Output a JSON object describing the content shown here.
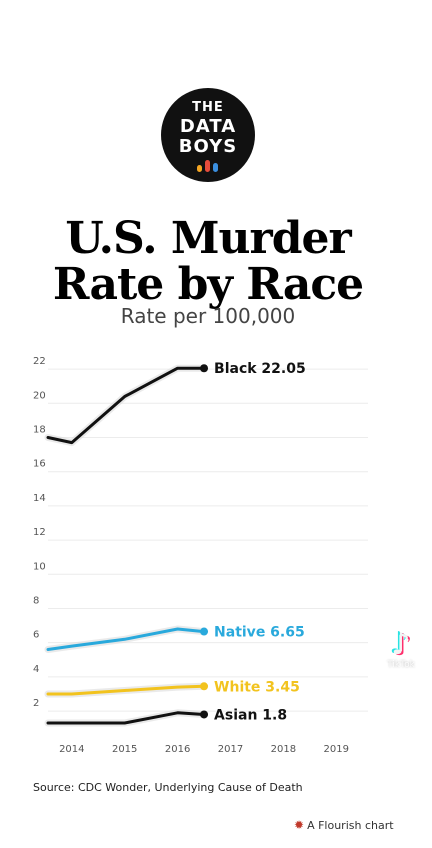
{
  "logo": {
    "line1": "THE",
    "line2": "DATA",
    "line3": "BOYS",
    "bar_colors": [
      "#f5a623",
      "#e74c3c",
      "#3b8fe0"
    ]
  },
  "title_line1": "U.S. Murder",
  "title_line2": "Rate by Race",
  "subtitle": "Rate per 100,000",
  "source": "Source: CDC Wonder, Underlying Cause of Death",
  "credit": "A Flourish chart",
  "watermark": {
    "brand": "TikTok",
    "icon": "tiktok-note-icon"
  },
  "chart_data": {
    "type": "line",
    "x_ticks": [
      2014,
      2015,
      2016,
      2017,
      2018,
      2019
    ],
    "xlim": [
      2013.55,
      2019.6
    ],
    "ylim": [
      0.6,
      23
    ],
    "y_ticks": [
      2,
      4,
      6,
      8,
      10,
      12,
      14,
      16,
      18,
      20,
      22
    ],
    "grid": true,
    "series": [
      {
        "name": "Black",
        "color": "#111111",
        "label": "Black 22.05",
        "points": [
          [
            2013.55,
            18.0
          ],
          [
            2014.0,
            17.7
          ],
          [
            2015.0,
            20.4
          ],
          [
            2016.0,
            22.05
          ],
          [
            2016.5,
            22.05
          ]
        ]
      },
      {
        "name": "Native",
        "color": "#29a9dc",
        "label": "Native 6.65",
        "points": [
          [
            2013.55,
            5.6
          ],
          [
            2014.0,
            5.8
          ],
          [
            2015.0,
            6.2
          ],
          [
            2016.0,
            6.8
          ],
          [
            2016.5,
            6.65
          ]
        ]
      },
      {
        "name": "White",
        "color": "#f2c31e",
        "label": "White 3.45",
        "points": [
          [
            2013.55,
            3.0
          ],
          [
            2014.0,
            3.0
          ],
          [
            2015.0,
            3.2
          ],
          [
            2016.0,
            3.4
          ],
          [
            2016.5,
            3.45
          ]
        ]
      },
      {
        "name": "Asian",
        "color": "#111111",
        "label": "Asian 1.8",
        "points": [
          [
            2013.55,
            1.3
          ],
          [
            2014.0,
            1.3
          ],
          [
            2015.0,
            1.3
          ],
          [
            2016.0,
            1.9
          ],
          [
            2016.5,
            1.8
          ]
        ]
      }
    ]
  }
}
